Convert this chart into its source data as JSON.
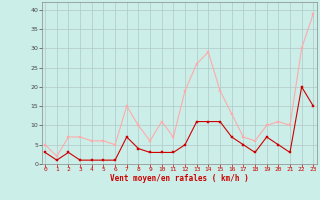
{
  "x": [
    0,
    1,
    2,
    3,
    4,
    5,
    6,
    7,
    8,
    9,
    10,
    11,
    12,
    13,
    14,
    15,
    16,
    17,
    18,
    19,
    20,
    21,
    22,
    23
  ],
  "wind_avg": [
    3,
    1,
    3,
    1,
    1,
    1,
    1,
    7,
    4,
    3,
    3,
    3,
    5,
    11,
    11,
    11,
    7,
    5,
    3,
    7,
    5,
    3,
    20,
    15
  ],
  "wind_gust": [
    5,
    2,
    7,
    7,
    6,
    6,
    5,
    15,
    10,
    6,
    11,
    7,
    19,
    26,
    29,
    19,
    13,
    7,
    6,
    10,
    11,
    10,
    30,
    39
  ],
  "avg_color": "#cc0000",
  "gust_color": "#ffaaaa",
  "bg_color": "#cceee8",
  "grid_color": "#b0c8c8",
  "xlabel": "Vent moyen/en rafales ( km/h )",
  "yticks": [
    0,
    5,
    10,
    15,
    20,
    25,
    30,
    35,
    40
  ],
  "xticks": [
    0,
    1,
    2,
    3,
    4,
    5,
    6,
    7,
    8,
    9,
    10,
    11,
    12,
    13,
    14,
    15,
    16,
    17,
    18,
    19,
    20,
    21,
    22,
    23
  ],
  "ylim": [
    0,
    42
  ],
  "xlim": [
    -0.3,
    23.3
  ]
}
